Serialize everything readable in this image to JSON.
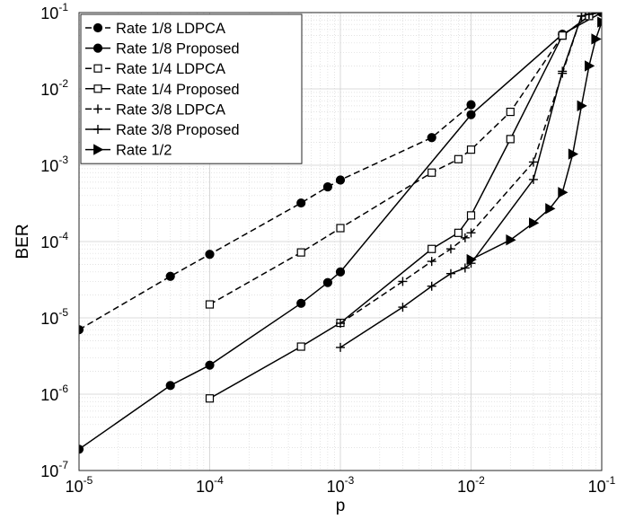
{
  "chart_data": {
    "type": "line",
    "title": "",
    "xlabel": "p",
    "ylabel": "BER",
    "xscale": "log",
    "yscale": "log",
    "xlim": [
      1e-05,
      0.1
    ],
    "ylim": [
      1e-07,
      0.1
    ],
    "grid": "on (major and minor)",
    "legend_position": "top-left",
    "x_ticks": [
      {
        "base": "10",
        "exp": "-5",
        "value": 1e-05
      },
      {
        "base": "10",
        "exp": "-4",
        "value": 0.0001
      },
      {
        "base": "10",
        "exp": "-3",
        "value": 0.001
      },
      {
        "base": "10",
        "exp": "-2",
        "value": 0.01
      },
      {
        "base": "10",
        "exp": "-1",
        "value": 0.1
      }
    ],
    "y_ticks": [
      {
        "base": "10",
        "exp": "-7",
        "value": 1e-07
      },
      {
        "base": "10",
        "exp": "-6",
        "value": 1e-06
      },
      {
        "base": "10",
        "exp": "-5",
        "value": 1e-05
      },
      {
        "base": "10",
        "exp": "-4",
        "value": 0.0001
      },
      {
        "base": "10",
        "exp": "-3",
        "value": 0.001
      },
      {
        "base": "10",
        "exp": "-2",
        "value": 0.01
      },
      {
        "base": "10",
        "exp": "-1",
        "value": 0.1
      }
    ],
    "series": [
      {
        "name": "Rate 1/8 LDPCA",
        "style": "dashed",
        "marker": "filled-circle",
        "x": [
          1e-05,
          5e-05,
          0.0001,
          0.0005,
          0.0008,
          0.001,
          0.005,
          0.01
        ],
        "y": [
          7e-06,
          3.5e-05,
          6.8e-05,
          0.00032,
          0.00052,
          0.00064,
          0.0023,
          0.0062
        ]
      },
      {
        "name": "Rate 1/8 Proposed",
        "style": "solid",
        "marker": "filled-circle",
        "x": [
          1e-05,
          5e-05,
          0.0001,
          0.0005,
          0.0008,
          0.001,
          0.01,
          0.05,
          0.1
        ],
        "y": [
          1.9e-07,
          1.3e-06,
          2.4e-06,
          1.55e-05,
          2.9e-05,
          4e-05,
          0.0046,
          0.052,
          0.1
        ]
      },
      {
        "name": "Rate 1/4 LDPCA",
        "style": "dashed",
        "marker": "open-square",
        "x": [
          0.0001,
          0.0005,
          0.001,
          0.005,
          0.008,
          0.01,
          0.02,
          0.05,
          0.08
        ],
        "y": [
          1.5e-05,
          7.2e-05,
          0.00015,
          0.0008,
          0.0012,
          0.0016,
          0.005,
          0.05,
          0.09
        ]
      },
      {
        "name": "Rate 1/4 Proposed",
        "style": "solid",
        "marker": "open-square",
        "x": [
          0.0001,
          0.0005,
          0.001,
          0.005,
          0.008,
          0.01,
          0.02,
          0.05,
          0.08
        ],
        "y": [
          8.8e-07,
          4.2e-06,
          8.6e-06,
          8e-05,
          0.00013,
          0.00022,
          0.0022,
          0.05,
          0.09
        ]
      },
      {
        "name": "Rate 3/8 LDPCA",
        "style": "dashed",
        "marker": "plus",
        "x": [
          0.001,
          0.003,
          0.005,
          0.007,
          0.009,
          0.01,
          0.03,
          0.05,
          0.07,
          0.08,
          0.1
        ],
        "y": [
          8.5e-06,
          3e-05,
          5.5e-05,
          8e-05,
          0.000112,
          0.00013,
          0.0011,
          0.016,
          0.09,
          0.095,
          0.1
        ]
      },
      {
        "name": "Rate 3/8 Proposed",
        "style": "solid",
        "marker": "plus",
        "x": [
          0.001,
          0.003,
          0.005,
          0.007,
          0.009,
          0.01,
          0.03,
          0.05,
          0.07,
          0.08,
          0.1
        ],
        "y": [
          4.1e-06,
          1.38e-05,
          2.6e-05,
          3.8e-05,
          4.5e-05,
          5.2e-05,
          0.00065,
          0.017,
          0.09,
          0.095,
          0.1
        ]
      },
      {
        "name": "Rate 1/2",
        "style": "solid",
        "marker": "filled-triangle-right",
        "x": [
          0.01,
          0.02,
          0.03,
          0.04,
          0.05,
          0.06,
          0.07,
          0.08,
          0.09,
          0.1
        ],
        "y": [
          5.8e-05,
          0.000105,
          0.000175,
          0.00027,
          0.00044,
          0.0014,
          0.006,
          0.02,
          0.045,
          0.075
        ]
      }
    ]
  }
}
